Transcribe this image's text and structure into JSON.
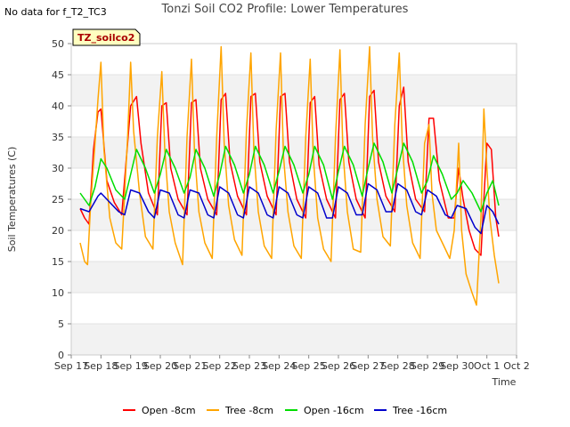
{
  "header": {
    "note": "No data for f_T2_TC3",
    "title": "Tonzi Soil CO2 Profile: Lower Temperatures"
  },
  "chart_data": {
    "type": "line",
    "title": "Tonzi Soil CO2 Profile: Lower Temperatures",
    "xlabel": "Time",
    "ylabel": "Soil Temperatures (C)",
    "ylim": [
      0,
      50
    ],
    "yticks": [
      0,
      5,
      10,
      15,
      20,
      25,
      30,
      35,
      40,
      45,
      50
    ],
    "xlim": [
      0,
      15
    ],
    "xtick_labels": [
      "Sep 17",
      "Sep 18",
      "Sep 19",
      "Sep 20",
      "Sep 21",
      "Sep 22",
      "Sep 23",
      "Sep 24",
      "Sep 25",
      "Sep 26",
      "Sep 27",
      "Sep 28",
      "Sep 29",
      "Sep 30",
      "Oct 1",
      "Oct 2"
    ],
    "grid": "horizontal bands",
    "legend_position": "bottom",
    "site_label": "TZ_soilco2",
    "series": [
      {
        "name": "Open -8cm",
        "color": "#ff0000",
        "x": [
          0.3,
          0.45,
          0.6,
          0.75,
          0.9,
          1.0,
          1.2,
          1.45,
          1.7,
          2.0,
          2.2,
          2.35,
          2.6,
          2.9,
          3.05,
          3.2,
          3.35,
          3.6,
          3.9,
          4.05,
          4.2,
          4.35,
          4.6,
          4.9,
          5.05,
          5.2,
          5.35,
          5.6,
          5.9,
          6.05,
          6.2,
          6.35,
          6.6,
          6.9,
          7.05,
          7.2,
          7.35,
          7.6,
          7.9,
          8.05,
          8.2,
          8.35,
          8.6,
          8.9,
          9.05,
          9.2,
          9.35,
          9.6,
          9.9,
          10.05,
          10.2,
          10.35,
          10.6,
          10.9,
          11.05,
          11.2,
          11.35,
          11.6,
          11.9,
          12.05,
          12.2,
          12.4,
          12.7,
          12.9,
          13.05,
          13.2,
          13.4,
          13.6,
          13.8,
          13.9,
          14.0,
          14.15,
          14.3,
          14.4
        ],
        "y": [
          23.5,
          22.0,
          21.0,
          33.0,
          39.0,
          39.5,
          28.0,
          24.5,
          22.5,
          40.0,
          41.5,
          34.0,
          26.0,
          22.5,
          40.0,
          40.5,
          30.0,
          25.0,
          22.5,
          40.5,
          41.0,
          30.0,
          25.0,
          22.5,
          41.0,
          42.0,
          31.0,
          25.5,
          22.5,
          41.5,
          42.0,
          31.0,
          25.5,
          22.5,
          41.5,
          42.0,
          31.0,
          25.0,
          22.0,
          40.5,
          41.5,
          30.5,
          25.0,
          22.0,
          41.0,
          42.0,
          31.0,
          25.0,
          22.0,
          41.5,
          42.5,
          31.0,
          25.5,
          23.0,
          40.0,
          43.0,
          31.0,
          25.0,
          23.0,
          38.0,
          38.0,
          28.0,
          22.0,
          22.0,
          30.0,
          25.0,
          20.0,
          17.0,
          16.0,
          25.0,
          34.0,
          33.0,
          22.0,
          19.0
        ]
      },
      {
        "name": "Tree -8cm",
        "color": "#ffa500",
        "x": [
          0.3,
          0.45,
          0.55,
          0.65,
          0.8,
          0.9,
          1.0,
          1.1,
          1.3,
          1.5,
          1.7,
          1.9,
          2.0,
          2.1,
          2.3,
          2.5,
          2.75,
          2.9,
          3.05,
          3.15,
          3.3,
          3.5,
          3.75,
          3.9,
          4.05,
          4.15,
          4.3,
          4.5,
          4.75,
          4.9,
          5.05,
          5.15,
          5.3,
          5.5,
          5.75,
          5.9,
          6.05,
          6.15,
          6.3,
          6.5,
          6.75,
          6.9,
          7.05,
          7.15,
          7.3,
          7.5,
          7.75,
          7.9,
          8.05,
          8.15,
          8.3,
          8.5,
          8.75,
          8.9,
          9.05,
          9.15,
          9.3,
          9.5,
          9.75,
          9.9,
          10.05,
          10.15,
          10.3,
          10.5,
          10.75,
          10.9,
          11.05,
          11.15,
          11.3,
          11.5,
          11.75,
          11.9,
          12.05,
          12.15,
          12.3,
          12.5,
          12.75,
          12.9,
          13.05,
          13.15,
          13.3,
          13.5,
          13.65,
          13.8,
          13.9,
          14.0,
          14.1,
          14.25,
          14.4
        ],
        "y": [
          18.0,
          15.0,
          14.5,
          24.0,
          34.0,
          41.0,
          47.0,
          33.0,
          22.0,
          18.0,
          17.0,
          35.0,
          47.0,
          36.0,
          26.0,
          19.0,
          17.0,
          35.0,
          45.5,
          33.0,
          23.0,
          18.0,
          14.5,
          35.0,
          47.5,
          33.0,
          23.0,
          18.0,
          15.5,
          35.0,
          49.5,
          34.0,
          24.0,
          18.5,
          16.0,
          36.0,
          48.5,
          33.0,
          23.0,
          17.5,
          15.5,
          36.0,
          48.5,
          32.0,
          23.0,
          17.5,
          15.5,
          35.0,
          47.5,
          32.0,
          22.0,
          17.0,
          15.0,
          35.0,
          49.0,
          33.0,
          23.0,
          17.0,
          16.5,
          37.0,
          49.5,
          35.0,
          25.0,
          19.0,
          17.5,
          37.0,
          48.5,
          34.0,
          24.0,
          18.0,
          15.5,
          34.0,
          37.0,
          26.0,
          20.0,
          18.0,
          15.5,
          20.0,
          34.0,
          20.0,
          13.0,
          10.0,
          8.0,
          22.0,
          39.5,
          30.0,
          22.0,
          16.0,
          11.5
        ]
      },
      {
        "name": "Open -16cm",
        "color": "#00dd00",
        "x": [
          0.3,
          0.6,
          0.8,
          1.0,
          1.2,
          1.5,
          1.8,
          2.0,
          2.2,
          2.5,
          2.8,
          3.0,
          3.2,
          3.5,
          3.8,
          4.0,
          4.2,
          4.5,
          4.8,
          5.0,
          5.2,
          5.5,
          5.8,
          6.0,
          6.2,
          6.5,
          6.8,
          7.0,
          7.2,
          7.5,
          7.8,
          8.0,
          8.2,
          8.5,
          8.8,
          9.0,
          9.2,
          9.5,
          9.8,
          10.0,
          10.2,
          10.5,
          10.8,
          11.0,
          11.2,
          11.5,
          11.8,
          12.0,
          12.2,
          12.5,
          12.8,
          13.0,
          13.2,
          13.5,
          13.8,
          14.0,
          14.2,
          14.4
        ],
        "y": [
          26.0,
          24.0,
          27.0,
          31.5,
          30.0,
          26.5,
          25.0,
          29.0,
          33.0,
          30.0,
          26.0,
          29.0,
          33.0,
          30.0,
          26.0,
          28.5,
          33.0,
          30.0,
          25.5,
          29.0,
          33.5,
          30.5,
          26.0,
          29.0,
          33.5,
          30.5,
          26.0,
          29.5,
          33.5,
          30.5,
          26.0,
          29.0,
          33.5,
          30.5,
          25.0,
          29.5,
          33.5,
          30.5,
          25.5,
          30.0,
          34.0,
          31.0,
          26.0,
          30.0,
          34.0,
          31.0,
          26.0,
          28.0,
          32.0,
          29.0,
          25.0,
          26.0,
          28.0,
          26.0,
          23.0,
          26.0,
          28.0,
          24.0
        ]
      },
      {
        "name": "Tree -16cm",
        "color": "#0000cc",
        "x": [
          0.3,
          0.6,
          0.9,
          1.0,
          1.3,
          1.6,
          1.8,
          2.0,
          2.3,
          2.6,
          2.8,
          3.0,
          3.3,
          3.6,
          3.8,
          4.0,
          4.3,
          4.6,
          4.8,
          5.0,
          5.3,
          5.6,
          5.8,
          6.0,
          6.3,
          6.6,
          6.8,
          7.0,
          7.3,
          7.6,
          7.8,
          8.0,
          8.3,
          8.6,
          8.8,
          9.0,
          9.3,
          9.6,
          9.8,
          10.0,
          10.3,
          10.6,
          10.8,
          11.0,
          11.3,
          11.6,
          11.8,
          12.0,
          12.3,
          12.6,
          12.8,
          13.0,
          13.3,
          13.6,
          13.8,
          14.0,
          14.2,
          14.4
        ],
        "y": [
          23.5,
          23.0,
          25.5,
          26.0,
          24.5,
          23.0,
          22.5,
          26.5,
          26.0,
          23.0,
          22.0,
          26.5,
          26.0,
          22.5,
          22.0,
          26.5,
          26.0,
          22.5,
          22.0,
          27.0,
          26.0,
          22.5,
          22.0,
          27.0,
          26.0,
          22.5,
          22.0,
          27.0,
          26.0,
          22.5,
          22.0,
          27.0,
          26.0,
          22.0,
          22.0,
          27.0,
          26.0,
          22.5,
          22.5,
          27.5,
          26.5,
          23.0,
          23.0,
          27.5,
          26.5,
          23.0,
          22.5,
          26.5,
          25.5,
          22.5,
          22.0,
          24.0,
          23.5,
          20.5,
          19.5,
          24.0,
          23.0,
          21.0
        ]
      }
    ]
  }
}
